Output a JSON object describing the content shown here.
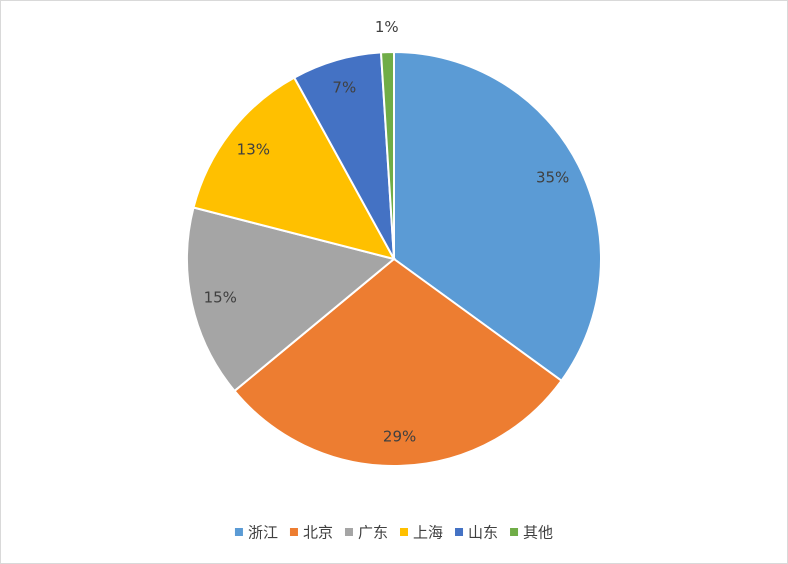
{
  "chart_data": {
    "type": "pie",
    "categories": [
      "浙江",
      "北京",
      "广东",
      "上海",
      "山东",
      "其他"
    ],
    "values": [
      35,
      29,
      15,
      13,
      7,
      1
    ],
    "value_labels": [
      "35%",
      "29%",
      "15%",
      "13%",
      "7%",
      "1%"
    ],
    "colors": [
      "#5b9bd5",
      "#ed7d31",
      "#a5a5a5",
      "#ffc000",
      "#4472c4",
      "#70ad47"
    ],
    "legend": "bottom"
  }
}
